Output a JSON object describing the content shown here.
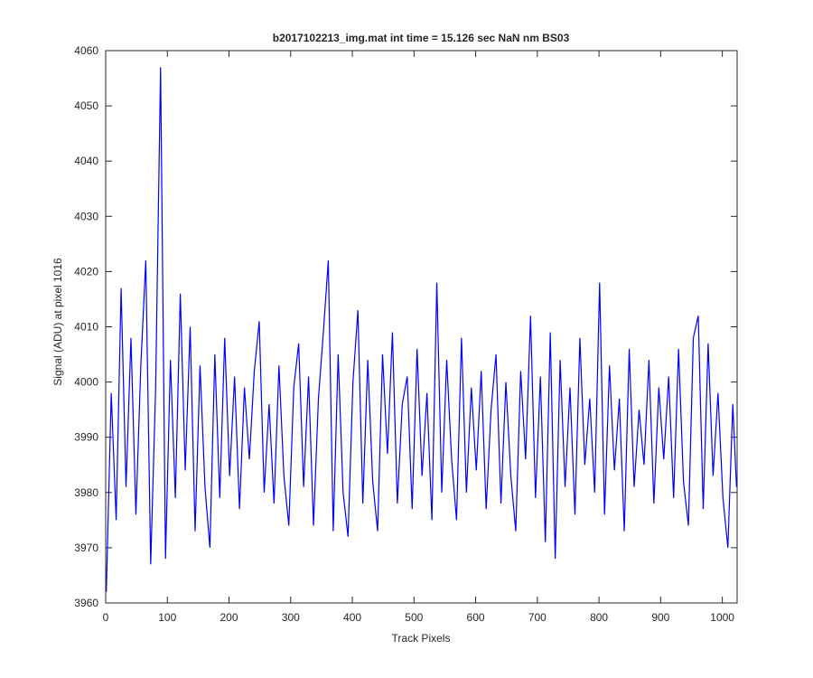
{
  "chart_data": {
    "type": "line",
    "title": "b2017102213_img.mat int time = 15.126 sec  NaN nm BS03",
    "x_label": "Track Pixels",
    "y_label": "Signal (ADU) at pixel 1016",
    "xlim": [
      0,
      1024
    ],
    "xticks": [
      0,
      100,
      200,
      300,
      400,
      500,
      600,
      700,
      800,
      900,
      1000
    ],
    "ylim": [
      3960,
      4060
    ],
    "yticks": [
      3960,
      3970,
      3980,
      3990,
      4000,
      4010,
      4020,
      4030,
      4040,
      4050,
      4060
    ],
    "grid": false,
    "x": [
      1,
      9,
      17,
      25,
      33,
      41,
      49,
      57,
      65,
      73,
      81,
      89,
      97,
      105,
      113,
      121,
      129,
      137,
      145,
      153,
      161,
      169,
      177,
      185,
      193,
      201,
      209,
      217,
      225,
      233,
      241,
      249,
      257,
      265,
      273,
      281,
      289,
      297,
      305,
      313,
      321,
      329,
      337,
      345,
      353,
      361,
      369,
      377,
      385,
      393,
      401,
      409,
      417,
      425,
      433,
      441,
      449,
      457,
      465,
      473,
      481,
      489,
      497,
      505,
      513,
      521,
      529,
      537,
      545,
      553,
      561,
      569,
      577,
      585,
      593,
      601,
      609,
      617,
      625,
      633,
      641,
      649,
      657,
      665,
      673,
      681,
      689,
      697,
      705,
      713,
      721,
      729,
      737,
      745,
      753,
      761,
      769,
      777,
      785,
      793,
      801,
      809,
      817,
      825,
      833,
      841,
      849,
      857,
      865,
      873,
      881,
      889,
      897,
      905,
      913,
      921,
      929,
      937,
      945,
      953,
      961,
      969,
      977,
      985,
      993,
      1001,
      1009,
      1017,
      1023
    ],
    "series": [
      {
        "name": "Signal",
        "color": "#0000ff",
        "values": [
          3962,
          3998,
          3975,
          4017,
          3981,
          4008,
          3976,
          4003,
          4022,
          3967,
          3999,
          4057,
          3968,
          4004,
          3979,
          4016,
          3984,
          4010,
          3973,
          4003,
          3981,
          3970,
          4005,
          3979,
          4008,
          3983,
          4001,
          3977,
          3999,
          3986,
          4002,
          4011,
          3980,
          3996,
          3978,
          4003,
          3983,
          3974,
          3999,
          4007,
          3981,
          4001,
          3974,
          3997,
          4009,
          4022,
          3973,
          4005,
          3980,
          3972,
          4000,
          4013,
          3978,
          4004,
          3982,
          3973,
          4005,
          3987,
          4009,
          3978,
          3996,
          4001,
          3977,
          4006,
          3983,
          3998,
          3975,
          4018,
          3980,
          4004,
          3986,
          3975,
          4008,
          3980,
          3999,
          3984,
          4002,
          3977,
          3995,
          4005,
          3978,
          4000,
          3983,
          3973,
          4002,
          3986,
          4012,
          3979,
          4001,
          3971,
          4009,
          3968,
          4004,
          3981,
          3999,
          3976,
          4008,
          3985,
          3997,
          3980,
          4018,
          3976,
          4003,
          3984,
          3997,
          3973,
          4006,
          3981,
          3995,
          3985,
          4004,
          3978,
          3999,
          3986,
          4001,
          3979,
          4006,
          3982,
          3974,
          4008,
          4012,
          3977,
          4007,
          3983,
          3998,
          3979,
          3970,
          3996,
          3981
        ]
      }
    ]
  }
}
